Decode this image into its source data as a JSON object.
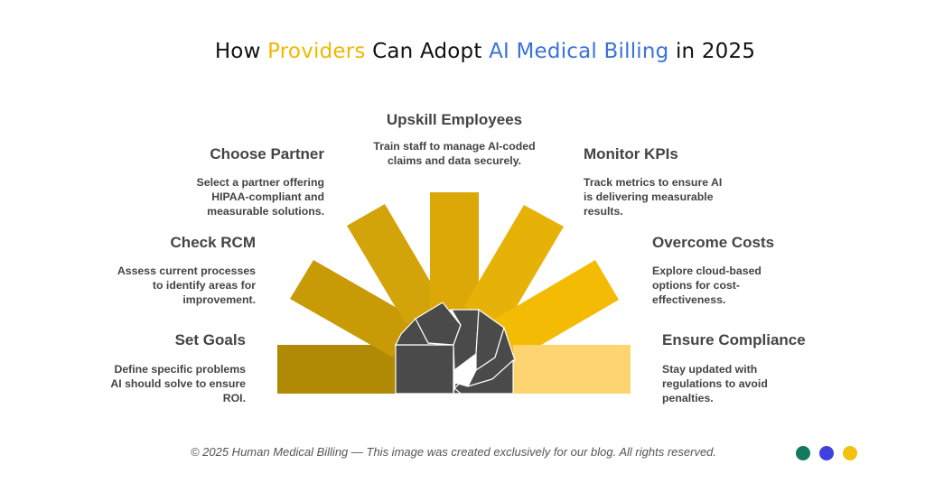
{
  "header": {
    "title_part1": "How ",
    "title_highlight1": "Providers",
    "title_part2": " Can Adopt ",
    "title_highlight2": "AI Medical Billing",
    "title_part3": " in 2025"
  },
  "steps": [
    {
      "title": "Set Goals",
      "description": "Define specific problems AI should solve to ensure ROI.",
      "color": "#b08905"
    },
    {
      "title": "Check RCM",
      "description": "Assess current processes to identify areas for improvement.",
      "color": "#c89a06"
    },
    {
      "title": "Choose Partner",
      "description": "Select a partner offering HIPAA-compliant and measurable solutions.",
      "color": "#d3a30a"
    },
    {
      "title": "Upskill Employees",
      "description": "Train staff to manage AI-coded claims and data securely.",
      "color": "#dba808"
    },
    {
      "title": "Monitor KPIs",
      "description": "Track metrics to ensure AI is delivering measurable results.",
      "color": "#e7b208"
    },
    {
      "title": "Overcome Costs",
      "description": "Explore cloud-based options for cost-effectiveness.",
      "color": "#f4bb05"
    },
    {
      "title": "Ensure Compliance",
      "description": "Stay updated with regulations to avoid penalties.",
      "color": "#fdd46f"
    }
  ],
  "colors": {
    "center_fan": "#4a4a4a",
    "title_highlight_gold": "#f2b705",
    "title_highlight_blue": "#3a72d8"
  },
  "footer": {
    "text": "© 2025 Human Medical Billing — This image was created exclusively for our blog. All rights reserved."
  },
  "brand_dots": [
    "#137a5f",
    "#4040e0",
    "#f2c20f"
  ]
}
